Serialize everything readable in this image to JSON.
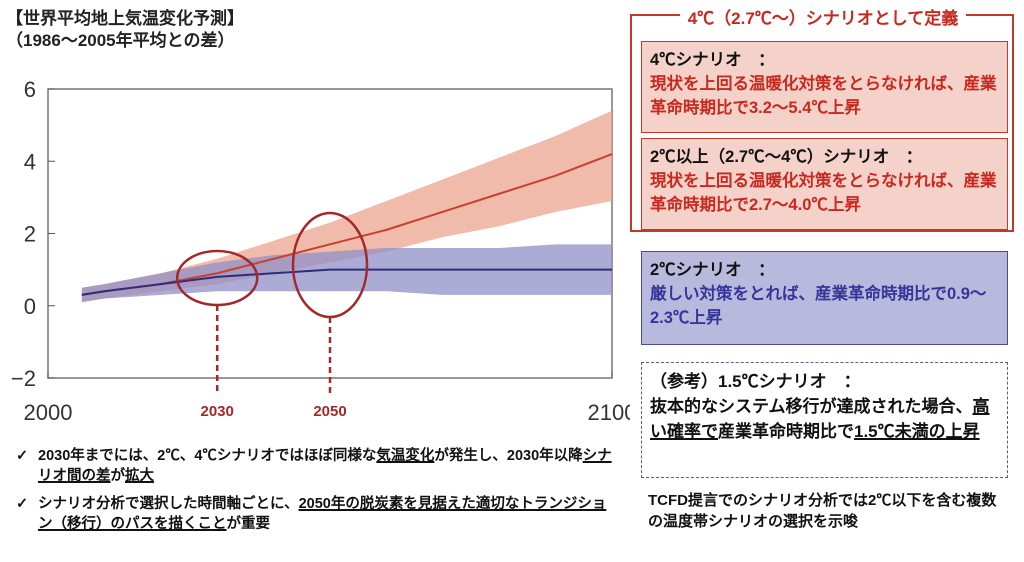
{
  "chart_data": {
    "type": "line",
    "title": "【世界平均地上気温変化予測】",
    "subtitle": "（1986～2005年平均との差）",
    "x": [
      2006,
      2010,
      2020,
      2030,
      2040,
      2050,
      2060,
      2070,
      2080,
      2090,
      2100
    ],
    "series": [
      {
        "color": "#c8402e",
        "band_color": "#eca48f",
        "values": [
          0.3,
          0.4,
          0.6,
          0.9,
          1.3,
          1.7,
          2.1,
          2.6,
          3.1,
          3.6,
          4.2
        ],
        "lower": [
          0.1,
          0.2,
          0.4,
          0.6,
          0.9,
          1.2,
          1.5,
          1.9,
          2.2,
          2.6,
          2.9
        ],
        "upper": [
          0.5,
          0.6,
          0.9,
          1.3,
          1.8,
          2.3,
          2.9,
          3.5,
          4.1,
          4.7,
          5.4
        ]
      },
      {
        "color": "#2e2e78",
        "band_color": "#8f8fc8",
        "values": [
          0.3,
          0.4,
          0.6,
          0.8,
          0.9,
          1.0,
          1.0,
          1.0,
          1.0,
          1.0,
          1.0
        ],
        "lower": [
          0.1,
          0.2,
          0.3,
          0.4,
          0.4,
          0.4,
          0.4,
          0.3,
          0.3,
          0.3,
          0.3
        ],
        "upper": [
          0.5,
          0.6,
          0.9,
          1.2,
          1.4,
          1.5,
          1.6,
          1.6,
          1.6,
          1.7,
          1.7
        ]
      }
    ],
    "xlim": [
      2000,
      2100
    ],
    "xticks": [
      2000,
      2100
    ],
    "ylim": [
      -2,
      6
    ],
    "yticks": [
      {
        "value": -2,
        "label": "−2"
      },
      0,
      2,
      4,
      6
    ],
    "annotations": [
      {
        "label": "2030",
        "x": 2030,
        "color": "#a3282a"
      },
      {
        "label": "2050",
        "x": 2050,
        "color": "#a3282a"
      }
    ]
  },
  "bullets": [
    [
      {
        "text": "2030年までには、2℃、4℃シナリオではほぼ同様な"
      },
      {
        "text": "気温変化",
        "underline": true
      },
      {
        "text": "が発生し、2030年以降"
      },
      {
        "text": "シナリオ間の差",
        "underline": true
      },
      {
        "text": "が"
      },
      {
        "text": "拡大",
        "underline": true
      }
    ],
    [
      {
        "text": "シナリオ分析で選択した時間軸ごとに、"
      },
      {
        "text": "2050年の脱炭素を見据えた適切なトランジション（移行）のパスを描くこと",
        "underline": true
      },
      {
        "text": "が重要"
      }
    ]
  ],
  "panel": {
    "header": "4℃（2.7℃～）シナリオとして定義",
    "boxes": [
      {
        "heading": "4℃シナリオ　：",
        "body": [
          {
            "text": "現状を上回る温暖化対策をとらなければ、産業革命時期比で3.2～5.4℃上昇"
          }
        ]
      },
      {
        "heading": "2℃以上（2.7℃～4℃）シナリオ　：",
        "body": [
          {
            "text": "現状を上回る温暖化対策をとらなければ、産業革命時期比で2.7～4.0℃上昇"
          }
        ]
      },
      {
        "heading": "2℃シナリオ　：",
        "body": [
          {
            "text": "厳しい対策をとれば、産業革命時期比で0.9～2.3℃上昇"
          }
        ]
      },
      {
        "heading": "（参考）1.5℃シナリオ　：",
        "body": [
          {
            "text": "抜本的なシステム移行が達成された場合、"
          },
          {
            "text": "高い確率で",
            "underline": true
          },
          {
            "text": "産業革命時期比で"
          },
          {
            "text": "1.5℃未満の上昇",
            "underline": true
          }
        ]
      }
    ],
    "note": "TCFD提言でのシナリオ分析では2℃以下を含む複数の温度帯シナリオの選択を示唆"
  }
}
